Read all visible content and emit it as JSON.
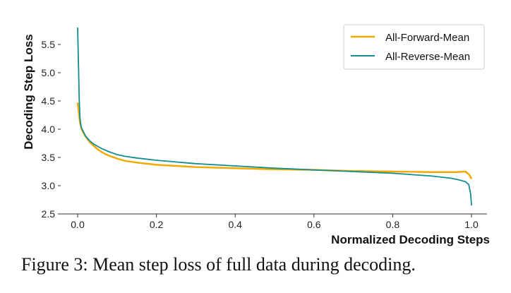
{
  "caption": "Figure 3: Mean step loss of full data during decoding.",
  "chart_data": {
    "type": "line",
    "xlabel": "Normalized Decoding Steps",
    "ylabel": "Decoding Step Loss",
    "xlim": [
      -0.05,
      1.02
    ],
    "ylim": [
      2.5,
      5.85
    ],
    "xticks": [
      0.0,
      0.2,
      0.4,
      0.6,
      0.8,
      1.0
    ],
    "xtick_labels": [
      "0.0",
      "0.2",
      "0.4",
      "0.6",
      "0.8",
      "1.0"
    ],
    "yticks": [
      2.5,
      3.0,
      3.5,
      4.0,
      4.5,
      5.0,
      5.5
    ],
    "ytick_labels": [
      "2.5",
      "3.0",
      "3.5",
      "4.0",
      "4.5",
      "5.0",
      "5.5"
    ],
    "legend_position": "top-right",
    "series": [
      {
        "name": "All-Forward-Mean",
        "color": "#f2a900",
        "x": [
          0.0,
          0.003,
          0.006,
          0.01,
          0.015,
          0.02,
          0.03,
          0.04,
          0.05,
          0.06,
          0.07,
          0.08,
          0.1,
          0.12,
          0.15,
          0.2,
          0.25,
          0.3,
          0.4,
          0.5,
          0.6,
          0.7,
          0.8,
          0.9,
          0.96,
          0.985,
          0.995,
          1.0
        ],
        "y": [
          4.47,
          4.3,
          4.12,
          4.0,
          3.93,
          3.87,
          3.78,
          3.71,
          3.65,
          3.6,
          3.56,
          3.53,
          3.48,
          3.44,
          3.41,
          3.37,
          3.35,
          3.33,
          3.31,
          3.29,
          3.28,
          3.26,
          3.25,
          3.24,
          3.24,
          3.25,
          3.19,
          3.12
        ]
      },
      {
        "name": "All-Reverse-Mean",
        "color": "#138d90",
        "x": [
          0.0,
          0.002,
          0.004,
          0.006,
          0.008,
          0.01,
          0.015,
          0.02,
          0.03,
          0.04,
          0.05,
          0.06,
          0.08,
          0.1,
          0.12,
          0.15,
          0.2,
          0.3,
          0.4,
          0.5,
          0.6,
          0.7,
          0.8,
          0.9,
          0.95,
          0.97,
          0.985,
          0.993,
          0.998,
          1.0
        ],
        "y": [
          5.8,
          5.2,
          4.55,
          4.2,
          4.08,
          4.02,
          3.95,
          3.88,
          3.8,
          3.74,
          3.7,
          3.66,
          3.6,
          3.55,
          3.52,
          3.49,
          3.45,
          3.39,
          3.35,
          3.31,
          3.28,
          3.25,
          3.22,
          3.17,
          3.13,
          3.1,
          3.07,
          3.02,
          2.85,
          2.65
        ]
      }
    ]
  }
}
